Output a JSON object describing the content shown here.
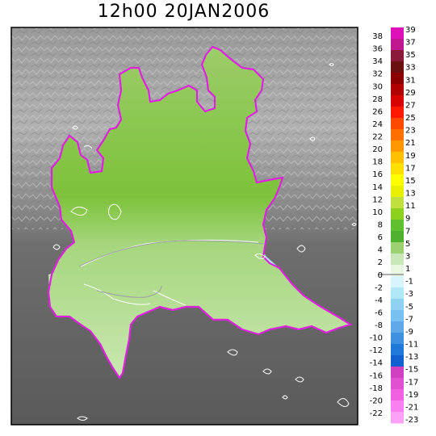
{
  "title": "12h00 20JAN2006",
  "legend": {
    "left_labels": [
      "38",
      "36",
      "34",
      "32",
      "30",
      "28",
      "26",
      "24",
      "22",
      "20",
      "18",
      "16",
      "14",
      "12",
      "10",
      "8",
      "6",
      "4",
      "2",
      "0",
      "-2",
      "-4",
      "-6",
      "-8",
      "-10",
      "-12",
      "-14",
      "-16",
      "-18",
      "-20",
      "-22"
    ],
    "right_labels": [
      "39",
      "37",
      "35",
      "33",
      "31",
      "29",
      "27",
      "25",
      "23",
      "21",
      "19",
      "17",
      "15",
      "13",
      "11",
      "9",
      "7",
      "5",
      "3",
      "1",
      "-1",
      "-3",
      "-5",
      "-7",
      "-9",
      "-11",
      "-13",
      "-15",
      "-17",
      "-19",
      "-21",
      "-23"
    ],
    "colors": [
      "#e010b8",
      "#c01890",
      "#8a1a3a",
      "#6a1010",
      "#8a0000",
      "#b00000",
      "#d80000",
      "#ff1800",
      "#ff4800",
      "#ff7000",
      "#ff9800",
      "#ffc000",
      "#ffe000",
      "#ffff00",
      "#e8f000",
      "#c0e040",
      "#8cd020",
      "#60c030",
      "#50b030",
      "#9cd070",
      "#c8e8b8",
      "#e8f8e0",
      "#d8f4ff",
      "#a8e0f0",
      "#78c8f0",
      "#50a8f0",
      "#3088e8",
      "#2060d8",
      "#c040c0",
      "#e050d8",
      "#f070e8",
      "#f8a0f8"
    ],
    "colors_lower": [
      "#b0e8f8",
      "#90d0f0",
      "#78c0f0",
      "#60a8e8",
      "#4090e0",
      "#2078d8",
      "#1060d0",
      "#d040c0",
      "#e050d0",
      "#f060e0",
      "#f880f0",
      "#fca0f8"
    ]
  }
}
